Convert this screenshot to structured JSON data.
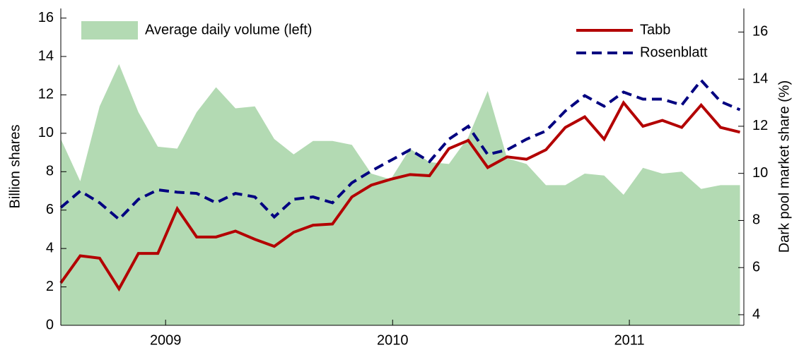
{
  "chart_data": {
    "type": "line",
    "x": [
      0,
      1,
      2,
      3,
      4,
      5,
      6,
      7,
      8,
      9,
      10,
      11,
      12,
      13,
      14,
      15,
      16,
      17,
      18,
      19,
      20,
      21,
      22,
      23,
      24,
      25,
      26,
      27,
      28,
      29,
      30,
      31,
      32,
      33,
      34,
      35
    ],
    "xlim": [
      0,
      35.2
    ],
    "xticks": [
      {
        "value": 5.4,
        "label": "2009"
      },
      {
        "value": 17.1,
        "label": "2010"
      },
      {
        "value": 29.3,
        "label": "2011"
      }
    ],
    "ylabel": "Billion shares",
    "ylim": [
      0,
      16.5
    ],
    "yticks": [
      0,
      2,
      4,
      6,
      8,
      10,
      12,
      14,
      16
    ],
    "y2label": "Dark pool market share (%)",
    "y2lim": [
      3.55,
      17
    ],
    "y2ticks": [
      4,
      6,
      8,
      10,
      12,
      14,
      16
    ],
    "series": [
      {
        "name": "Average daily volume (left)",
        "kind": "area",
        "color": "#b3dab3",
        "values": [
          9.7,
          7.5,
          11.4,
          13.6,
          11.1,
          9.3,
          9.2,
          11.1,
          12.4,
          11.3,
          11.4,
          9.7,
          8.9,
          9.6,
          9.6,
          9.4,
          7.9,
          7.6,
          9.2,
          8.5,
          8.4,
          9.8,
          12.2,
          8.7,
          8.4,
          7.3,
          7.3,
          7.9,
          7.8,
          6.8,
          8.2,
          7.9,
          8.0,
          7.1,
          7.3,
          7.3
        ]
      },
      {
        "name": "Tabb",
        "kind": "solid",
        "axis": "y2",
        "color": "#b30000",
        "values": [
          5.35,
          6.5,
          6.4,
          5.1,
          6.6,
          6.6,
          8.5,
          7.3,
          7.3,
          7.55,
          7.2,
          6.9,
          7.5,
          7.8,
          7.85,
          9.0,
          9.5,
          9.75,
          9.95,
          9.9,
          11.05,
          11.4,
          10.25,
          10.7,
          10.6,
          11.0,
          11.95,
          12.4,
          11.45,
          13.0,
          12.0,
          12.25,
          11.95,
          12.9,
          11.95,
          11.75
        ]
      },
      {
        "name": "Rosenblatt",
        "kind": "dashed",
        "axis": "y2",
        "color": "#000080",
        "values": [
          8.55,
          9.25,
          8.75,
          8.05,
          8.9,
          9.3,
          9.2,
          9.15,
          8.75,
          9.15,
          9.0,
          8.15,
          8.9,
          9.0,
          8.75,
          9.6,
          10.1,
          10.55,
          11.0,
          10.5,
          11.45,
          12.0,
          10.8,
          11.0,
          11.45,
          11.8,
          12.65,
          13.3,
          12.85,
          13.45,
          13.15,
          13.15,
          12.9,
          13.95,
          13.05,
          12.7
        ]
      }
    ]
  }
}
